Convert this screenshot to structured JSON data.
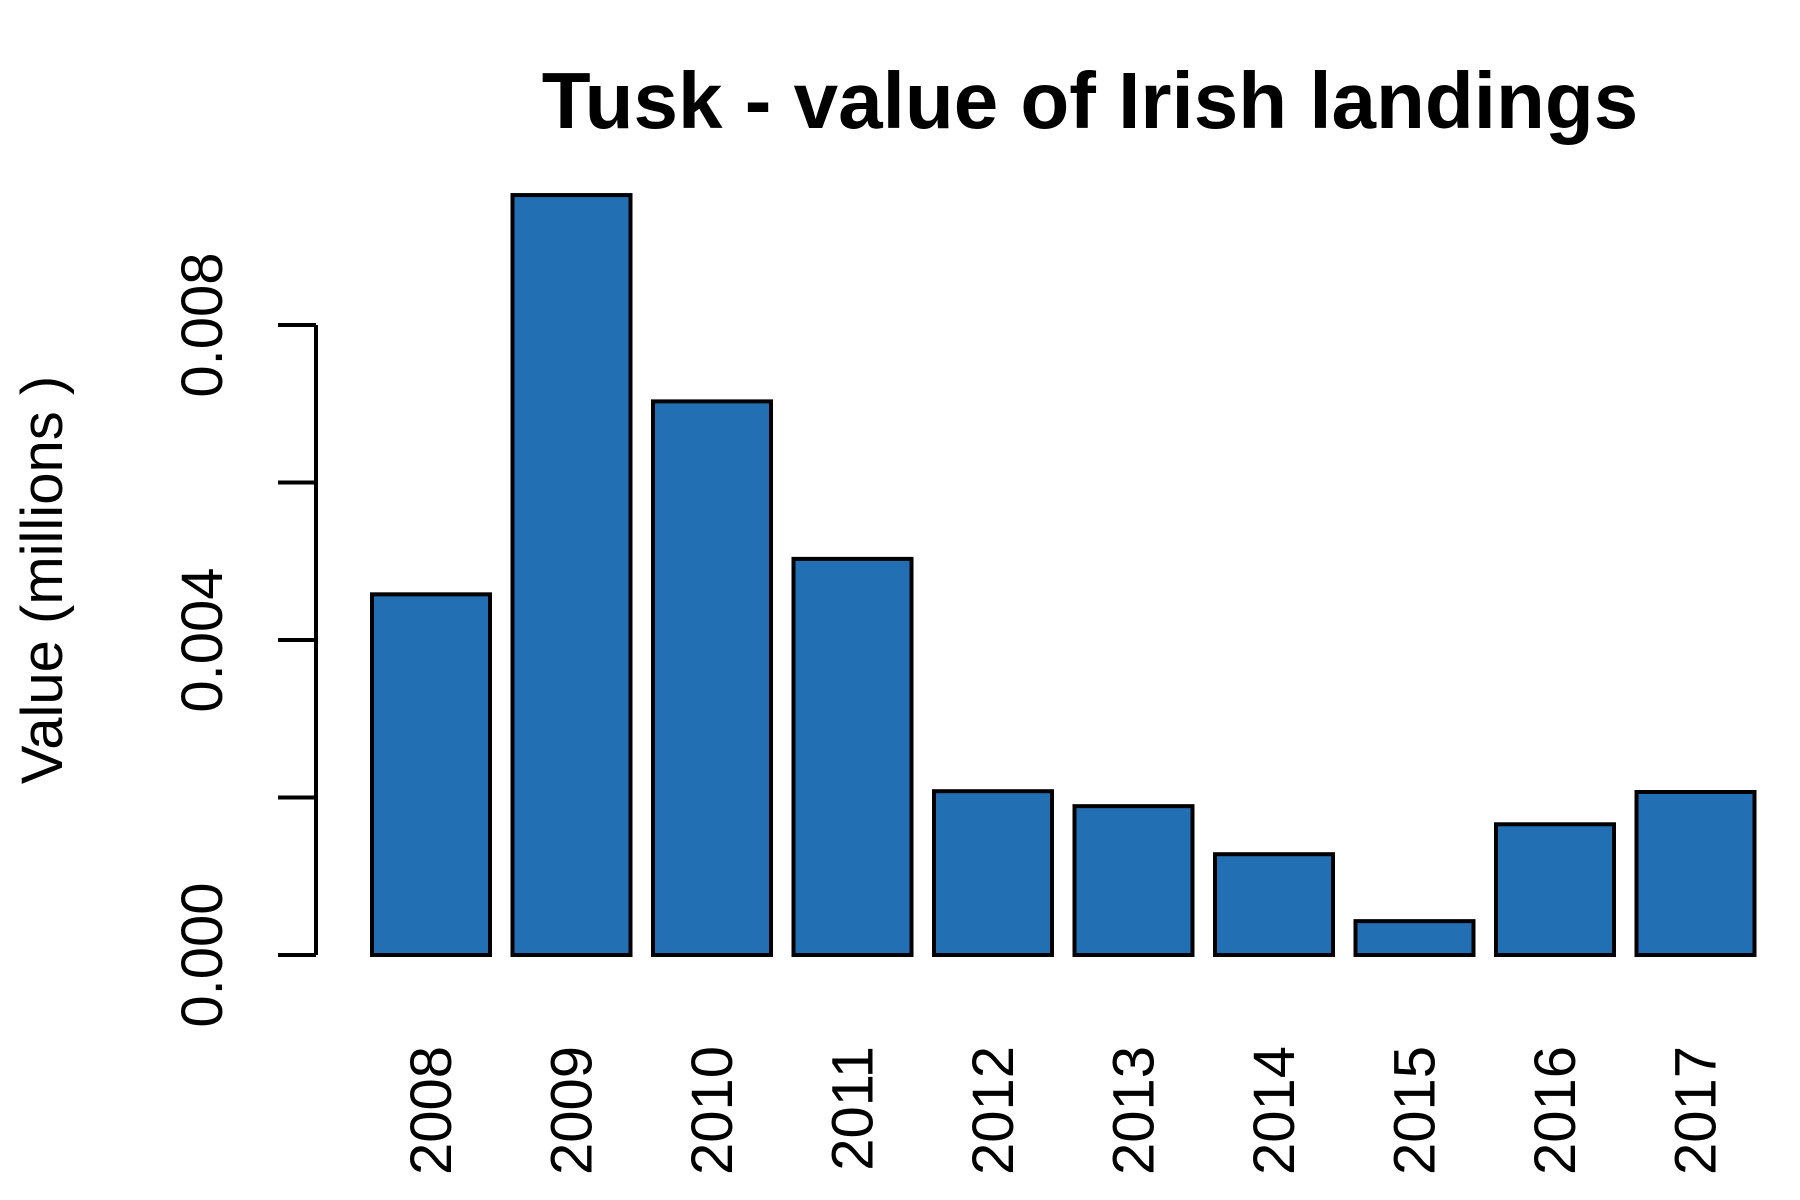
{
  "chart_data": {
    "type": "bar",
    "title": "Tusk - value of Irish landings",
    "xlabel": "",
    "ylabel": "Value (millions )",
    "categories": [
      "2008",
      "2009",
      "2010",
      "2011",
      "2012",
      "2013",
      "2014",
      "2015",
      "2016",
      "2017"
    ],
    "values": [
      0.00458,
      0.00965,
      0.00703,
      0.00503,
      0.00208,
      0.00189,
      0.00128,
      0.00043,
      0.00166,
      0.00207
    ],
    "yticks": [
      0.0,
      0.002,
      0.004,
      0.006,
      0.008
    ],
    "ytick_labels": [
      "0.000",
      "",
      "0.004",
      "",
      "0.008"
    ],
    "ylim": [
      0,
      0.0097
    ],
    "bar_color": "#2270b3",
    "grid": false,
    "legend": "none"
  }
}
